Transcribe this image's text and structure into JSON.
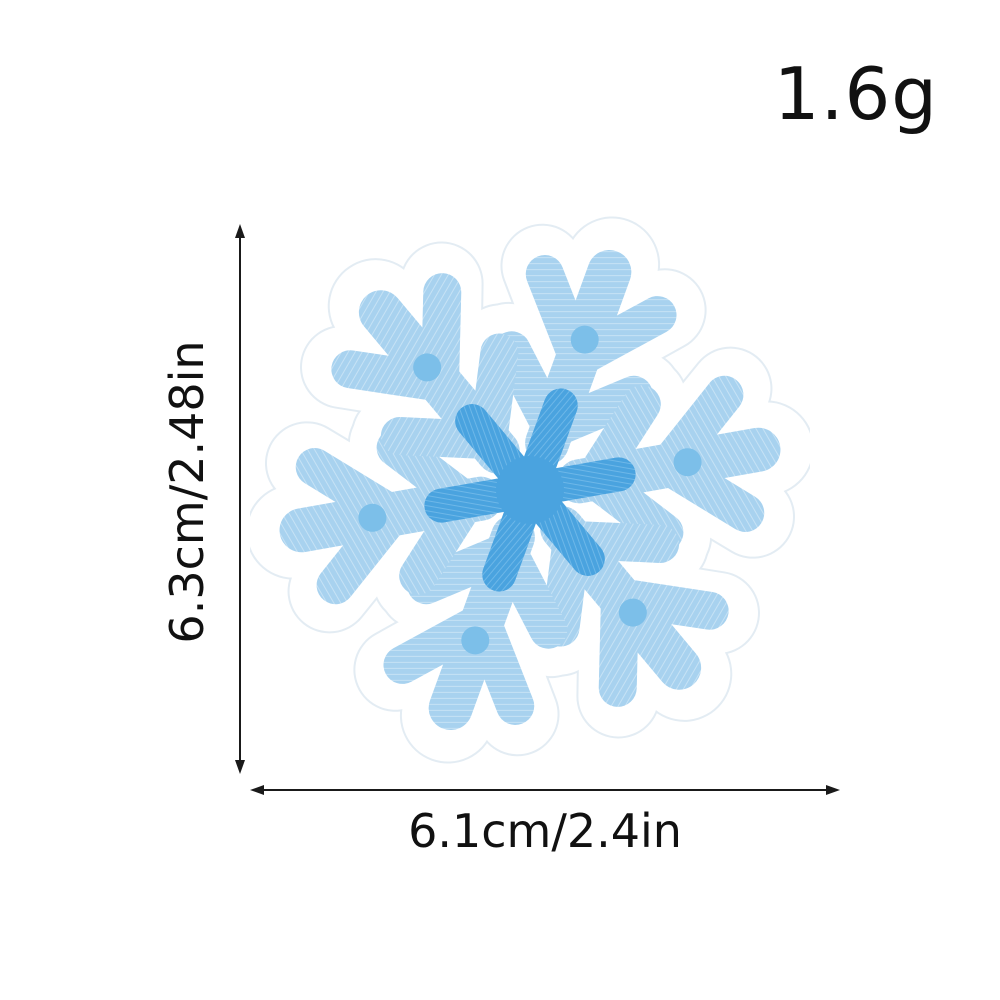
{
  "product": {
    "weight_label": "1.6g",
    "width_label": "6.1cm/2.4in",
    "height_label": "6.3cm/2.48in"
  },
  "colors": {
    "felt_backing": "#ffffff",
    "felt_edge": "#e6eef4",
    "light_blue_stitch": "#a8d2ef",
    "mid_blue_stitch": "#7cbfe9",
    "center_blue_stitch": "#4aa3df",
    "arrow": "#1a1a1a"
  },
  "icons": {
    "patch": "snowflake-icon"
  }
}
